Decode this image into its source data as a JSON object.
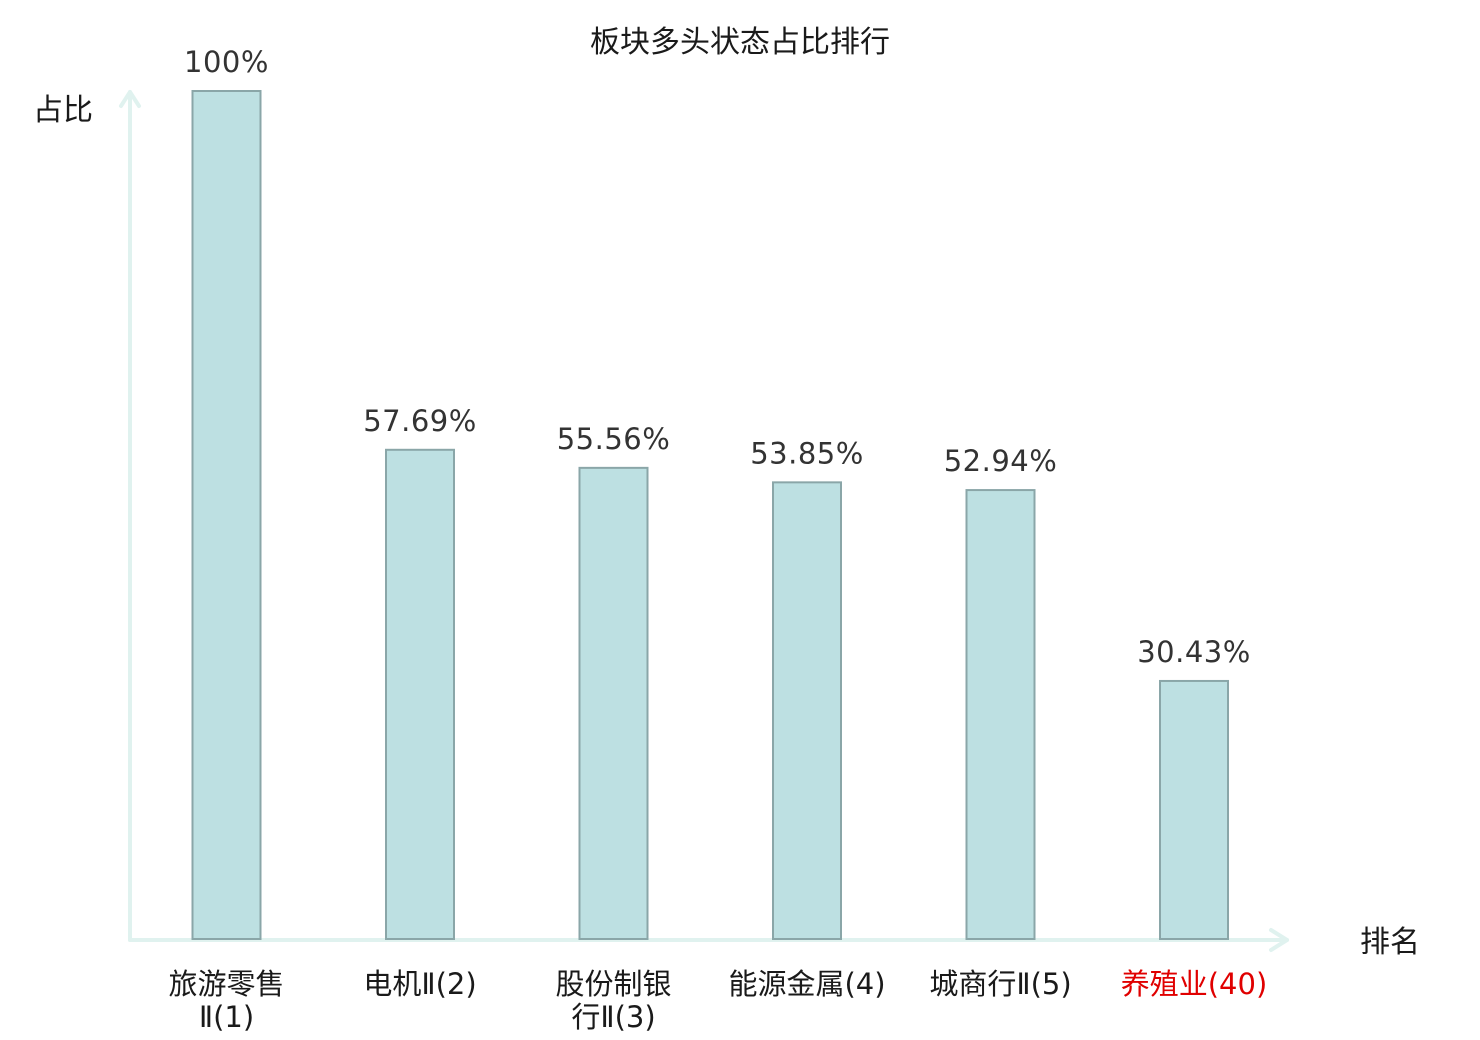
{
  "colors": {
    "bar_fill": "#bde0e2",
    "bar_stroke": "#8aa6a8",
    "axis": "#e0f2ef",
    "text": "#1a1a1a",
    "value_text": "#333333",
    "highlight": "#e00000"
  },
  "chart_data": {
    "type": "bar",
    "title": "板块多头状态占比排行",
    "ylabel": "占比",
    "xlabel": "排名",
    "ylim": [
      0,
      100
    ],
    "grid": false,
    "categories": [
      {
        "name": "旅游零售Ⅱ",
        "rank": "(1)",
        "lines": [
          "旅游零售",
          "Ⅱ(1)"
        ],
        "highlight": false
      },
      {
        "name": "电机Ⅱ",
        "rank": "(2)",
        "lines": [
          "电机Ⅱ(2)"
        ],
        "highlight": false
      },
      {
        "name": "股份制银行Ⅱ",
        "rank": "(3)",
        "lines": [
          "股份制银",
          "行Ⅱ(3)"
        ],
        "highlight": false
      },
      {
        "name": "能源金属",
        "rank": "(4)",
        "lines": [
          "能源金属(4)"
        ],
        "highlight": false
      },
      {
        "name": "城商行Ⅱ",
        "rank": "(5)",
        "lines": [
          "城商行Ⅱ(5)"
        ],
        "highlight": false
      },
      {
        "name": "养殖业",
        "rank": "(40)",
        "lines": [
          "养殖业(40)"
        ],
        "highlight": true
      }
    ],
    "values": [
      100,
      57.69,
      55.56,
      53.85,
      52.94,
      30.43
    ],
    "value_labels": [
      "100%",
      "57.69%",
      "55.56%",
      "53.85%",
      "52.94%",
      "30.43%"
    ]
  }
}
